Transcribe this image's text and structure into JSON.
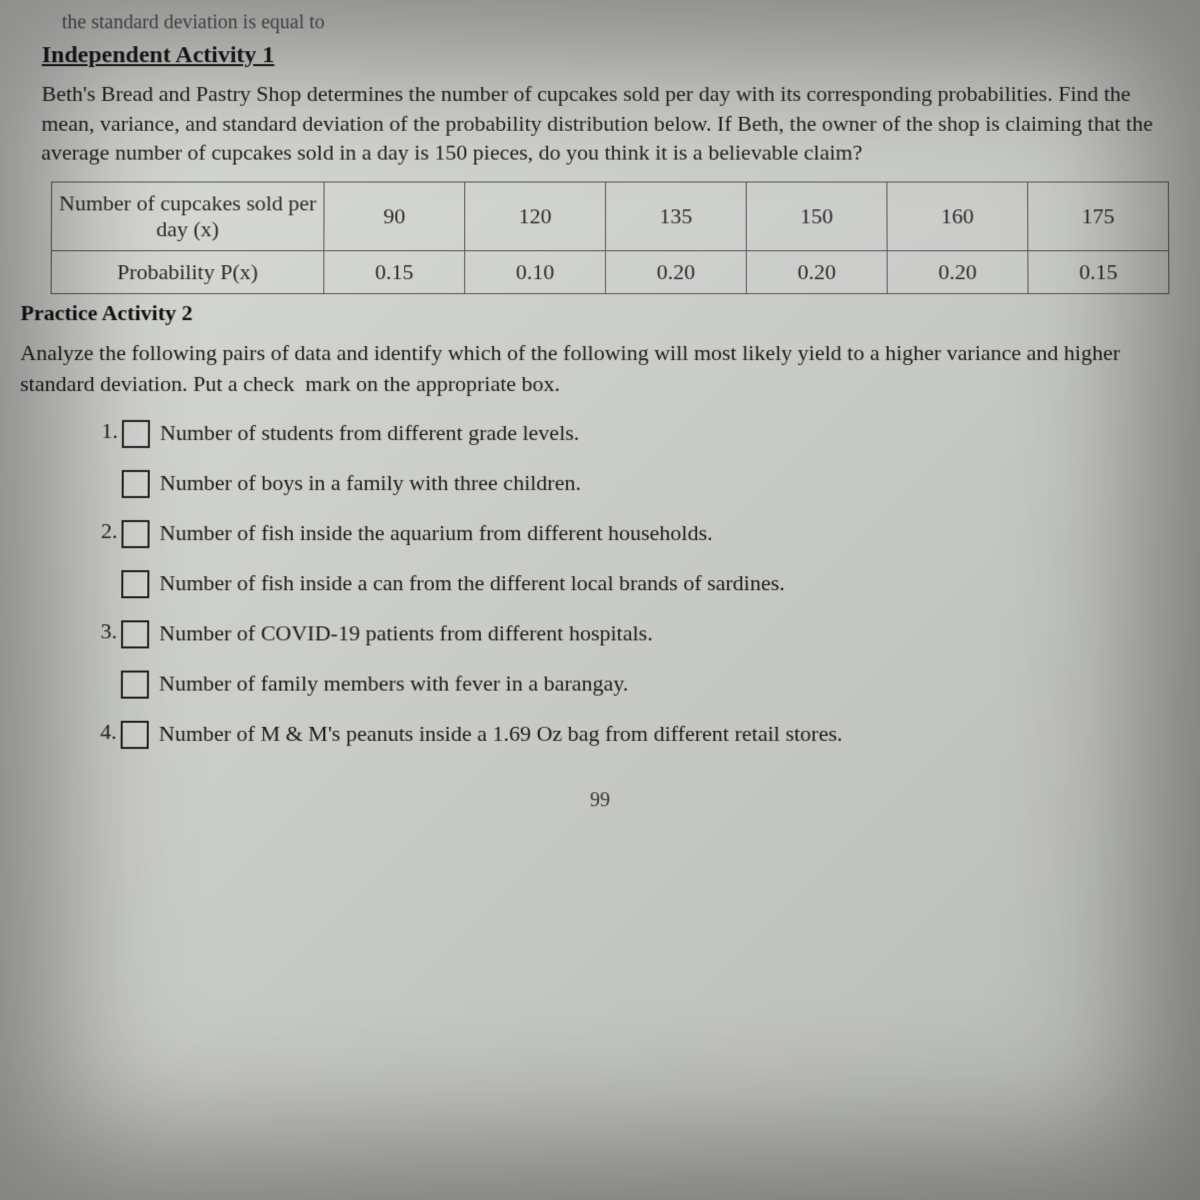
{
  "top_fragment": "the standard deviation is equal to",
  "activity1": {
    "title": "Independent Activity 1",
    "text": "Beth's Bread and Pastry Shop determines the number of cupcakes sold per day with its corresponding probabilities. Find the mean, variance, and standard deviation of the probability distribution below. If Beth, the owner of the shop is claiming that the average number of cupcakes sold in a day is 150 pieces, do you think it is a believable claim?"
  },
  "table": {
    "row1_header": "Number of cupcakes sold per day (x)",
    "row2_header": "Probability P(x)",
    "x": [
      "90",
      "120",
      "135",
      "150",
      "160",
      "175"
    ],
    "p": [
      "0.15",
      "0.10",
      "0.20",
      "0.20",
      "0.20",
      "0.15"
    ],
    "border_color": "#555555",
    "font_size": 22
  },
  "activity2": {
    "title": "Practice Activity 2",
    "text": "Analyze the following pairs of data and identify which of the following will most likely yield to a higher variance and higher standard deviation. Put a check  mark on the appropriate box."
  },
  "options": [
    {
      "num": "1.",
      "text": "Number of students from different grade levels."
    },
    {
      "num": "",
      "text": "Number of boys in a family with three children."
    },
    {
      "num": "2.",
      "text": "Number of fish inside the aquarium from different households."
    },
    {
      "num": "",
      "text": "Number of fish inside a can from the different local brands of sardines."
    },
    {
      "num": "3.",
      "text": "Number of COVID-19 patients from different hospitals."
    },
    {
      "num": "",
      "text": "Number of family members with fever in a barangay."
    },
    {
      "num": "4.",
      "text": "Number of M & M's peanuts inside a 1.69 Oz bag from different retail stores."
    }
  ],
  "page_number": "99",
  "colors": {
    "text": "#1a1a1a",
    "bg_top": "#d8dad6",
    "bg_bot": "#b8bab6"
  }
}
